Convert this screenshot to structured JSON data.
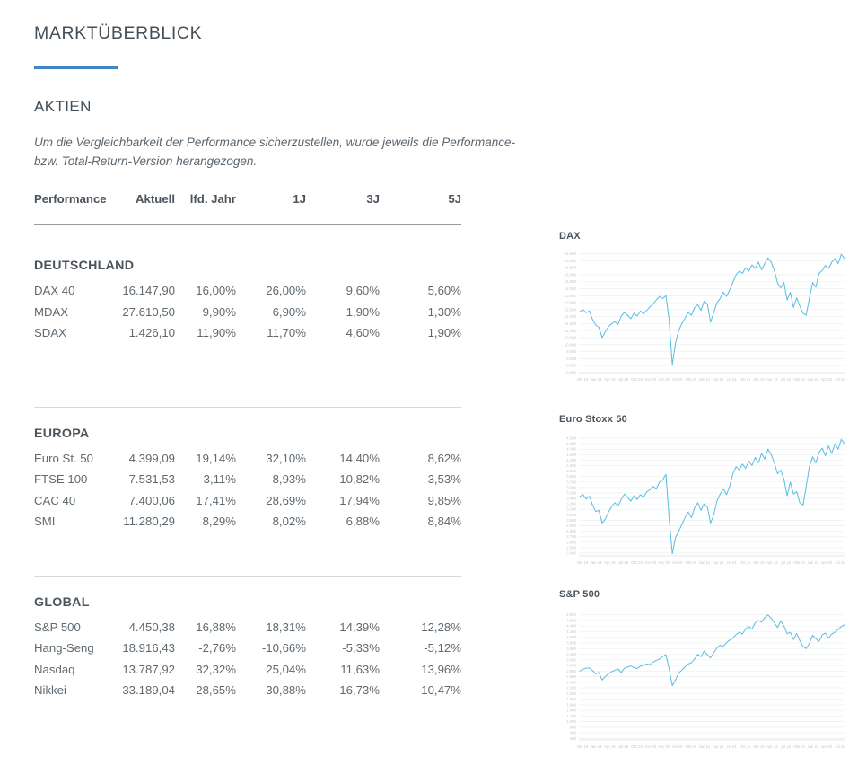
{
  "page": {
    "title": "MARKTÜBERBLICK",
    "section_title": "AKTIEN",
    "disclaimer_line1": "Um die Vergleichbarkeit der Performance sicherzustellen, wurde jeweils die Performance-",
    "disclaimer_line2": "bzw. Total-Return-Version herangezogen.",
    "accent_color": "#4186c0",
    "chart_line_color": "#59bce2"
  },
  "table": {
    "headers": [
      "Performance",
      "Aktuell",
      "lfd. Jahr",
      "1J",
      "3J",
      "5J"
    ],
    "groups": [
      {
        "name": "DEUTSCHLAND",
        "rows": [
          [
            "DAX 40",
            "16.147,90",
            "16,00%",
            "26,00%",
            "9,60%",
            "5,60%"
          ],
          [
            "MDAX",
            "27.610,50",
            "9,90%",
            "6,90%",
            "1,90%",
            "1,30%"
          ],
          [
            "SDAX",
            "1.426,10",
            "11,90%",
            "11,70%",
            "4,60%",
            "1,90%"
          ]
        ]
      },
      {
        "name": "EUROPA",
        "rows": [
          [
            "Euro St. 50",
            "4.399,09",
            "19,14%",
            "32,10%",
            "14,40%",
            "8,62%"
          ],
          [
            "FTSE 100",
            "7.531,53",
            "3,11%",
            "8,93%",
            "10,82%",
            "3,53%"
          ],
          [
            "CAC 40",
            "7.400,06",
            "17,41%",
            "28,69%",
            "17,94%",
            "9,85%"
          ],
          [
            "SMI",
            "11.280,29",
            "8,29%",
            "8,02%",
            "6,88%",
            "8,84%"
          ]
        ]
      },
      {
        "name": "GLOBAL",
        "rows": [
          [
            "S&P 500",
            "4.450,38",
            "16,88%",
            "18,31%",
            "14,39%",
            "12,28%"
          ],
          [
            "Hang-Seng",
            "18.916,43",
            "-2,76%",
            "-10,66%",
            "-5,33%",
            "-5,12%"
          ],
          [
            "Nasdaq",
            "13.787,92",
            "32,32%",
            "25,04%",
            "11,63%",
            "13,96%"
          ],
          [
            "Nikkei",
            "33.189,04",
            "28,65%",
            "30,88%",
            "16,73%",
            "10,47%"
          ]
        ]
      }
    ]
  },
  "chart_data": [
    {
      "type": "line",
      "title": "DAX",
      "ylim": [
        8000,
        16600
      ],
      "ytick_min": 8000,
      "ytick_max": 16500,
      "ytick_step": 500,
      "x_range": "Jul 2018 - Jul 2023",
      "xticklabels": [
        "Okt 18",
        "Jan 19",
        "Apr 19",
        "Jul 19",
        "Okt 19",
        "Jan 20",
        "Apr 20",
        "Jul 20",
        "Okt 20",
        "Jan 21",
        "Apr 21",
        "Jul 21",
        "Okt 21",
        "Jan 22",
        "Apr 22",
        "Jul 22",
        "Okt 22",
        "Jan 23",
        "Apr 23",
        "Jul 23"
      ],
      "grid": true,
      "legend": "none",
      "values": [
        12350,
        12500,
        12280,
        12400,
        11800,
        11400,
        11250,
        10500,
        10900,
        11300,
        11500,
        11650,
        11450,
        12050,
        12300,
        12100,
        11850,
        12250,
        12050,
        12400,
        12200,
        12450,
        12700,
        12900,
        13200,
        13450,
        13300,
        13500,
        11800,
        8560,
        10100,
        11000,
        11500,
        11900,
        12300,
        12100,
        12650,
        12850,
        12450,
        13100,
        12900,
        11600,
        12300,
        13000,
        13300,
        13750,
        13450,
        13900,
        14450,
        15000,
        15250,
        15100,
        15500,
        15250,
        15700,
        15450,
        15900,
        15350,
        15800,
        16200,
        15900,
        15300,
        14400,
        14050,
        14450,
        13200,
        13750,
        12650,
        13350,
        12750,
        12250,
        12100,
        13350,
        14450,
        14100,
        15100,
        15300,
        15650,
        15450,
        15900,
        16150,
        15800,
        16450,
        16150
      ]
    },
    {
      "type": "line",
      "title": "Euro Stoxx 50",
      "ylim": [
        2350,
        4550
      ],
      "ytick_min": 2400,
      "ytick_max": 4500,
      "ytick_step": 100,
      "x_range": "Jul 2018 - Jul 2023",
      "xticklabels": [
        "Okt 18",
        "Jan 19",
        "Apr 19",
        "Jul 19",
        "Okt 19",
        "Jan 20",
        "Apr 20",
        "Jul 20",
        "Okt 20",
        "Jan 21",
        "Apr 21",
        "Jul 21",
        "Okt 21",
        "Jan 22",
        "Apr 22",
        "Jul 22",
        "Okt 22",
        "Jan 23",
        "Apr 23",
        "Jul 23"
      ],
      "grid": true,
      "legend": "none",
      "values": [
        3435,
        3470,
        3390,
        3440,
        3280,
        3160,
        3180,
        2950,
        3020,
        3150,
        3250,
        3320,
        3260,
        3380,
        3480,
        3420,
        3350,
        3450,
        3380,
        3470,
        3420,
        3520,
        3560,
        3620,
        3580,
        3700,
        3740,
        3840,
        3050,
        2390,
        2680,
        2800,
        2920,
        3050,
        3150,
        3050,
        3230,
        3320,
        3180,
        3300,
        3240,
        2950,
        3100,
        3350,
        3480,
        3580,
        3470,
        3620,
        3850,
        3980,
        3920,
        4030,
        3950,
        4080,
        4000,
        4150,
        4050,
        4220,
        4120,
        4300,
        4200,
        4050,
        3850,
        3920,
        3750,
        3450,
        3700,
        3480,
        3520,
        3320,
        3280,
        3620,
        3980,
        4160,
        4050,
        4240,
        4320,
        4180,
        4360,
        4220,
        4400,
        4300,
        4480,
        4400
      ]
    },
    {
      "type": "line",
      "title": "S&P 500",
      "ylim": [
        350,
        4950
      ],
      "ytick_min": 400,
      "ytick_max": 4800,
      "ytick_step": 200,
      "x_range": "Jul 2018 - Jul 2023",
      "xticklabels": [
        "Okt 18",
        "Jan 19",
        "Apr 19",
        "Jul 19",
        "Okt 19",
        "Jan 20",
        "Apr 20",
        "Jul 20",
        "Okt 20",
        "Jan 21",
        "Apr 21",
        "Jul 21",
        "Okt 21",
        "Jan 22",
        "Apr 22",
        "Jul 22",
        "Okt 22",
        "Jan 23",
        "Apr 23",
        "Jul 23"
      ],
      "grid": true,
      "legend": "none",
      "values": [
        2800,
        2860,
        2900,
        2915,
        2820,
        2700,
        2750,
        2480,
        2600,
        2700,
        2780,
        2830,
        2870,
        2750,
        2900,
        2940,
        2980,
        2925,
        2890,
        2975,
        3000,
        3060,
        3020,
        3120,
        3180,
        3230,
        3320,
        3380,
        2900,
        2280,
        2480,
        2720,
        2840,
        2950,
        3050,
        3100,
        3230,
        3390,
        3310,
        3520,
        3380,
        3270,
        3450,
        3620,
        3720,
        3680,
        3810,
        3900,
        3975,
        4100,
        4180,
        4120,
        4300,
        4380,
        4290,
        4520,
        4600,
        4540,
        4700,
        4800,
        4680,
        4520,
        4350,
        4580,
        4400,
        4130,
        4180,
        3920,
        4140,
        3880,
        3680,
        3600,
        3790,
        4070,
        3950,
        3850,
        4090,
        4150,
        3970,
        4120,
        4180,
        4280,
        4380,
        4450
      ]
    }
  ]
}
